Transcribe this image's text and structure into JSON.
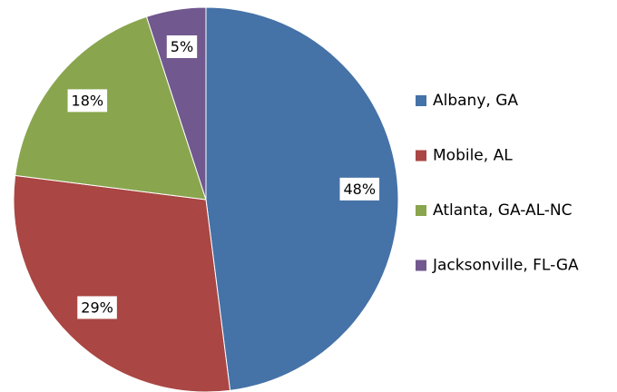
{
  "chart_data": {
    "type": "pie",
    "categories": [
      "Albany, GA",
      "Mobile, AL",
      "Atlanta, GA-AL-NC",
      "Jacksonville, FL-GA"
    ],
    "values": [
      48,
      29,
      18,
      5
    ],
    "value_labels": [
      "48%",
      "29%",
      "18%",
      "5%"
    ],
    "colors": [
      "#4572a7",
      "#aa4643",
      "#89a54e",
      "#71588f"
    ],
    "legend": "right"
  }
}
